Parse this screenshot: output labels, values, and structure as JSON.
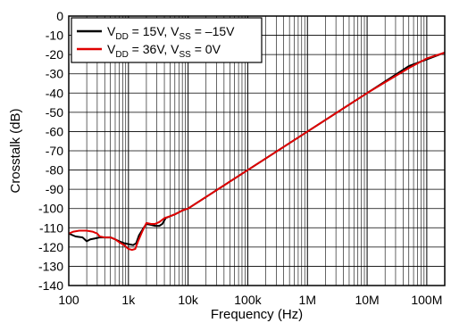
{
  "chart_data": {
    "type": "line",
    "xlabel": "Frequency (Hz)",
    "ylabel": "Crosstalk (dB)",
    "xscale": "log",
    "xlim": [
      100,
      200000000
    ],
    "ylim": [
      -140,
      0
    ],
    "grid": true,
    "legend_position": "top-left",
    "x_ticks": [
      {
        "value": 100,
        "label": "100"
      },
      {
        "value": 1000,
        "label": "1k"
      },
      {
        "value": 10000,
        "label": "10k"
      },
      {
        "value": 100000,
        "label": "100k"
      },
      {
        "value": 1000000,
        "label": "1M"
      },
      {
        "value": 10000000,
        "label": "10M"
      },
      {
        "value": 100000000,
        "label": "100M"
      }
    ],
    "y_ticks": [
      {
        "value": 0,
        "label": "0"
      },
      {
        "value": -10,
        "label": "-10"
      },
      {
        "value": -20,
        "label": "-20"
      },
      {
        "value": -30,
        "label": "-30"
      },
      {
        "value": -40,
        "label": "-40"
      },
      {
        "value": -50,
        "label": "-50"
      },
      {
        "value": -60,
        "label": "-60"
      },
      {
        "value": -70,
        "label": "-70"
      },
      {
        "value": -80,
        "label": "-80"
      },
      {
        "value": -90,
        "label": "-90"
      },
      {
        "value": -100,
        "label": "-100"
      },
      {
        "value": -110,
        "label": "-110"
      },
      {
        "value": -120,
        "label": "-120"
      },
      {
        "value": -130,
        "label": "-130"
      },
      {
        "value": -140,
        "label": "-140"
      }
    ],
    "series": [
      {
        "legend": {
          "prefix1": "V",
          "sub1": "DD",
          "mid": " = 15V, V",
          "sub2": "SS",
          "suffix": " = –15V"
        },
        "color": "#000000",
        "points": [
          [
            100,
            -113
          ],
          [
            130,
            -114.5
          ],
          [
            170,
            -115
          ],
          [
            200,
            -117
          ],
          [
            230,
            -116
          ],
          [
            280,
            -115.5
          ],
          [
            330,
            -115
          ],
          [
            400,
            -115
          ],
          [
            500,
            -115
          ],
          [
            600,
            -116
          ],
          [
            700,
            -117
          ],
          [
            850,
            -118
          ],
          [
            1000,
            -118.5
          ],
          [
            1200,
            -119
          ],
          [
            1350,
            -118
          ],
          [
            1500,
            -114
          ],
          [
            1800,
            -110
          ],
          [
            2000,
            -108
          ],
          [
            2400,
            -108.5
          ],
          [
            2800,
            -109
          ],
          [
            3300,
            -109
          ],
          [
            3700,
            -108
          ],
          [
            4200,
            -105
          ],
          [
            5000,
            -104
          ],
          [
            6000,
            -103
          ],
          [
            7000,
            -102
          ],
          [
            8000,
            -101
          ],
          [
            10000,
            -100
          ],
          [
            100000,
            -80
          ],
          [
            1000000,
            -60
          ],
          [
            10000000,
            -40
          ],
          [
            50000000,
            -26
          ],
          [
            100000000,
            -22.5
          ],
          [
            200000000,
            -19
          ]
        ]
      },
      {
        "legend": {
          "prefix1": "V",
          "sub1": "DD",
          "mid": " = 36V, V",
          "sub2": "SS",
          "suffix": " = 0V"
        },
        "color": "#e00000",
        "points": [
          [
            100,
            -113
          ],
          [
            120,
            -112
          ],
          [
            150,
            -111.5
          ],
          [
            200,
            -111.5
          ],
          [
            250,
            -112
          ],
          [
            300,
            -113
          ],
          [
            330,
            -114.5
          ],
          [
            400,
            -115
          ],
          [
            500,
            -115
          ],
          [
            600,
            -116
          ],
          [
            700,
            -117.5
          ],
          [
            850,
            -119
          ],
          [
            1000,
            -121
          ],
          [
            1150,
            -121.5
          ],
          [
            1300,
            -121
          ],
          [
            1450,
            -117
          ],
          [
            1700,
            -112
          ],
          [
            2000,
            -107.5
          ],
          [
            2400,
            -108
          ],
          [
            2800,
            -108
          ],
          [
            3300,
            -107
          ],
          [
            4000,
            -105
          ],
          [
            5000,
            -104
          ],
          [
            6000,
            -103
          ],
          [
            7000,
            -102
          ],
          [
            8000,
            -101
          ],
          [
            10000,
            -100
          ],
          [
            100000,
            -80
          ],
          [
            1000000,
            -60
          ],
          [
            10000000,
            -40
          ],
          [
            50000000,
            -27
          ],
          [
            100000000,
            -22
          ],
          [
            200000000,
            -19
          ]
        ]
      }
    ]
  }
}
